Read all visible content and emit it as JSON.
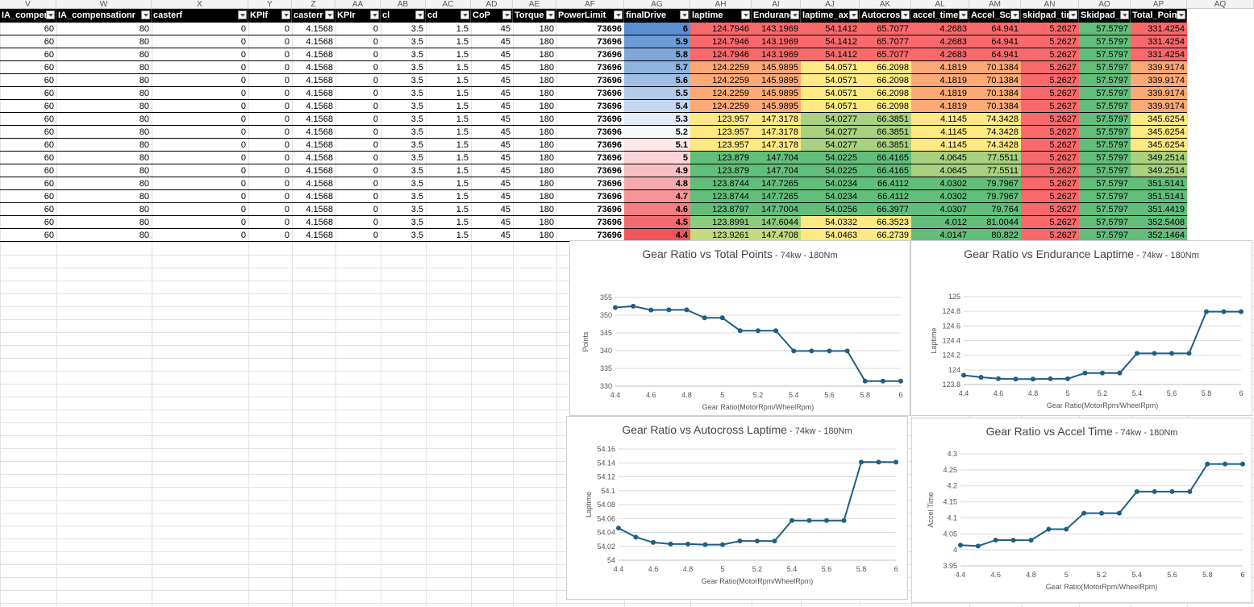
{
  "sheet": {
    "column_letters": [
      "V",
      "W",
      "X",
      "Y",
      "Z",
      "AA",
      "AB",
      "AC",
      "AD",
      "AE",
      "AF",
      "AG",
      "AH",
      "AI",
      "AJ",
      "AK",
      "AL",
      "AM",
      "AN",
      "AO",
      "AP",
      "AQ"
    ],
    "headers": [
      "IA_compen",
      "IA_compensationr",
      "casterf",
      "KPIf",
      "casterr",
      "KPIr",
      "cl",
      "cd",
      "CoP",
      "Torque",
      "PowerLimit",
      "finalDrive",
      "laptime",
      "Enduranc",
      "laptime_ax",
      "Autocros",
      "accel_time",
      "Accel_Sc",
      "skidpad_tim",
      "Skidpad_",
      "Total_Points"
    ],
    "rows": [
      [
        "60",
        "80",
        "0",
        "0",
        "4.1568",
        "0",
        "3.5",
        "1.5",
        "45",
        "180",
        "73696",
        "6",
        "124.7946",
        "143.1969",
        "54.1412",
        "65.7077",
        "4.2683",
        "64.941",
        "5.2627",
        "57.5797",
        "331.4254"
      ],
      [
        "60",
        "80",
        "0",
        "0",
        "4.1568",
        "0",
        "3.5",
        "1.5",
        "45",
        "180",
        "73696",
        "5.9",
        "124.7946",
        "143.1969",
        "54.1412",
        "65.7077",
        "4.2683",
        "64.941",
        "5.2627",
        "57.5797",
        "331.4254"
      ],
      [
        "60",
        "80",
        "0",
        "0",
        "4.1568",
        "0",
        "3.5",
        "1.5",
        "45",
        "180",
        "73696",
        "5.8",
        "124.7946",
        "143.1969",
        "54.1412",
        "65.7077",
        "4.2683",
        "64.941",
        "5.2627",
        "57.5797",
        "331.4254"
      ],
      [
        "60",
        "80",
        "0",
        "0",
        "4.1568",
        "0",
        "3.5",
        "1.5",
        "45",
        "180",
        "73696",
        "5.7",
        "124.2259",
        "145.9895",
        "54.0571",
        "66.2098",
        "4.1819",
        "70.1384",
        "5.2627",
        "57.5797",
        "339.9174"
      ],
      [
        "60",
        "80",
        "0",
        "0",
        "4.1568",
        "0",
        "3.5",
        "1.5",
        "45",
        "180",
        "73696",
        "5.6",
        "124.2259",
        "145.9895",
        "54.0571",
        "66.2098",
        "4.1819",
        "70.1384",
        "5.2627",
        "57.5797",
        "339.9174"
      ],
      [
        "60",
        "80",
        "0",
        "0",
        "4.1568",
        "0",
        "3.5",
        "1.5",
        "45",
        "180",
        "73696",
        "5.5",
        "124.2259",
        "145.9895",
        "54.0571",
        "66.2098",
        "4.1819",
        "70.1384",
        "5.2627",
        "57.5797",
        "339.9174"
      ],
      [
        "60",
        "80",
        "0",
        "0",
        "4.1568",
        "0",
        "3.5",
        "1.5",
        "45",
        "180",
        "73696",
        "5.4",
        "124.2259",
        "145.9895",
        "54.0571",
        "66.2098",
        "4.1819",
        "70.1384",
        "5.2627",
        "57.5797",
        "339.9174"
      ],
      [
        "60",
        "80",
        "0",
        "0",
        "4.1568",
        "0",
        "3.5",
        "1.5",
        "45",
        "180",
        "73696",
        "5.3",
        "123.957",
        "147.3178",
        "54.0277",
        "66.3851",
        "4.1145",
        "74.3428",
        "5.2627",
        "57.5797",
        "345.6254"
      ],
      [
        "60",
        "80",
        "0",
        "0",
        "4.1568",
        "0",
        "3.5",
        "1.5",
        "45",
        "180",
        "73696",
        "5.2",
        "123.957",
        "147.3178",
        "54.0277",
        "66.3851",
        "4.1145",
        "74.3428",
        "5.2627",
        "57.5797",
        "345.6254"
      ],
      [
        "60",
        "80",
        "0",
        "0",
        "4.1568",
        "0",
        "3.5",
        "1.5",
        "45",
        "180",
        "73696",
        "5.1",
        "123.957",
        "147.3178",
        "54.0277",
        "66.3851",
        "4.1145",
        "74.3428",
        "5.2627",
        "57.5797",
        "345.6254"
      ],
      [
        "60",
        "80",
        "0",
        "0",
        "4.1568",
        "0",
        "3.5",
        "1.5",
        "45",
        "180",
        "73696",
        "5",
        "123.879",
        "147.704",
        "54.0225",
        "66.4165",
        "4.0645",
        "77.5511",
        "5.2627",
        "57.5797",
        "349.2514"
      ],
      [
        "60",
        "80",
        "0",
        "0",
        "4.1568",
        "0",
        "3.5",
        "1.5",
        "45",
        "180",
        "73696",
        "4.9",
        "123.879",
        "147.704",
        "54.0225",
        "66.4165",
        "4.0645",
        "77.5511",
        "5.2627",
        "57.5797",
        "349.2514"
      ],
      [
        "60",
        "80",
        "0",
        "0",
        "4.1568",
        "0",
        "3.5",
        "1.5",
        "45",
        "180",
        "73696",
        "4.8",
        "123.8744",
        "147.7265",
        "54.0234",
        "66.4112",
        "4.0302",
        "79.7967",
        "5.2627",
        "57.5797",
        "351.5141"
      ],
      [
        "60",
        "80",
        "0",
        "0",
        "4.1568",
        "0",
        "3.5",
        "1.5",
        "45",
        "180",
        "73696",
        "4.7",
        "123.8744",
        "147.7265",
        "54.0234",
        "66.4112",
        "4.0302",
        "79.7967",
        "5.2627",
        "57.5797",
        "351.5141"
      ],
      [
        "60",
        "80",
        "0",
        "0",
        "4.1568",
        "0",
        "3.5",
        "1.5",
        "45",
        "180",
        "73696",
        "4.6",
        "123.8797",
        "147.7004",
        "54.0256",
        "66.3977",
        "4.0307",
        "79.764",
        "5.2627",
        "57.5797",
        "351.4419"
      ],
      [
        "60",
        "80",
        "0",
        "0",
        "4.1568",
        "0",
        "3.5",
        "1.5",
        "45",
        "180",
        "73696",
        "4.5",
        "123.8991",
        "147.6044",
        "54.0332",
        "66.3523",
        "4.012",
        "81.0044",
        "5.2627",
        "57.5797",
        "352.5408"
      ],
      [
        "60",
        "80",
        "0",
        "0",
        "4.1568",
        "0",
        "3.5",
        "1.5",
        "45",
        "180",
        "73696",
        "4.4",
        "123.9261",
        "147.4708",
        "54.0463",
        "66.2739",
        "4.0147",
        "80.822",
        "5.2627",
        "57.5797",
        "352.1464"
      ]
    ],
    "fills": {
      "finalDrive": [
        "#5b8ed0",
        "#6d9bd5",
        "#7ea7da",
        "#8fb3df",
        "#a1bfe4",
        "#b2cbe9",
        "#c4d7ee",
        "#e5ebf6",
        "#f7f9fc",
        "#fde8e9",
        "#fbd5d7",
        "#f9c0c3",
        "#f7aaae",
        "#f59599",
        "#f37f84",
        "#f26b71",
        "#f0555c"
      ],
      "laptime": [
        "#f8696b",
        "#f8696b",
        "#f8696b",
        "#fbaa77",
        "#fbaa77",
        "#fbaa77",
        "#fbaa77",
        "#fee983",
        "#fee983",
        "#fee983",
        "#63be7b",
        "#63be7b",
        "#63be7b",
        "#63be7b",
        "#63be7b",
        "#8ccc7e",
        "#c1dc81"
      ],
      "Enduranc": [
        "#f8696b",
        "#f8696b",
        "#f8696b",
        "#fbaa77",
        "#fbaa77",
        "#fbaa77",
        "#fbaa77",
        "#fee983",
        "#fee983",
        "#fee983",
        "#63be7b",
        "#63be7b",
        "#63be7b",
        "#63be7b",
        "#63be7b",
        "#8ccc7e",
        "#c1dc81"
      ],
      "laptime_ax": [
        "#f8696b",
        "#f8696b",
        "#f8696b",
        "#fee983",
        "#fee983",
        "#fee983",
        "#fee983",
        "#a8d27f",
        "#a8d27f",
        "#a8d27f",
        "#63be7b",
        "#63be7b",
        "#63be7b",
        "#63be7b",
        "#63be7b",
        "#fee983",
        "#fee983"
      ],
      "Autocros": [
        "#f8696b",
        "#f8696b",
        "#f8696b",
        "#fee983",
        "#fee983",
        "#fee983",
        "#fee983",
        "#a8d27f",
        "#a8d27f",
        "#a8d27f",
        "#63be7b",
        "#63be7b",
        "#63be7b",
        "#63be7b",
        "#63be7b",
        "#fee983",
        "#fee983"
      ],
      "accel_time": [
        "#f8696b",
        "#f8696b",
        "#f8696b",
        "#fbaa77",
        "#fbaa77",
        "#fbaa77",
        "#fbaa77",
        "#fee983",
        "#fee983",
        "#fee983",
        "#a8d27f",
        "#a8d27f",
        "#63be7b",
        "#63be7b",
        "#63be7b",
        "#63be7b",
        "#63be7b"
      ],
      "Accel_Sc": [
        "#f8696b",
        "#f8696b",
        "#f8696b",
        "#fbaa77",
        "#fbaa77",
        "#fbaa77",
        "#fbaa77",
        "#fee983",
        "#fee983",
        "#fee983",
        "#a8d27f",
        "#a8d27f",
        "#63be7b",
        "#63be7b",
        "#63be7b",
        "#63be7b",
        "#63be7b"
      ],
      "skidpad_tim": [
        "#f8696b",
        "#f8696b",
        "#f8696b",
        "#f8696b",
        "#f8696b",
        "#f8696b",
        "#f8696b",
        "#f8696b",
        "#f8696b",
        "#f8696b",
        "#f8696b",
        "#f8696b",
        "#f8696b",
        "#f8696b",
        "#f8696b",
        "#f8696b",
        "#f8696b"
      ],
      "Skidpad_": [
        "#63be7b",
        "#63be7b",
        "#63be7b",
        "#63be7b",
        "#63be7b",
        "#63be7b",
        "#63be7b",
        "#63be7b",
        "#63be7b",
        "#63be7b",
        "#63be7b",
        "#63be7b",
        "#63be7b",
        "#63be7b",
        "#63be7b",
        "#63be7b",
        "#63be7b"
      ],
      "Total_Points": [
        "#f8696b",
        "#f8696b",
        "#f8696b",
        "#fbaa77",
        "#fbaa77",
        "#fbaa77",
        "#fbaa77",
        "#fee983",
        "#fee983",
        "#fee983",
        "#a8d27f",
        "#a8d27f",
        "#63be7b",
        "#63be7b",
        "#63be7b",
        "#63be7b",
        "#63be7b"
      ]
    },
    "sort_indicator_column": "finalDrive",
    "bold_columns": [
      "PowerLimit",
      "finalDrive"
    ]
  },
  "colors": {
    "series": "#1f5f85",
    "header_bg": "#000000",
    "gridline": "#e2e2e2"
  },
  "chart_data": [
    {
      "type": "line",
      "title": "Gear Ratio vs Total Points",
      "subtitle": " - 74kw - 180Nm",
      "title_size": "large",
      "xlabel": "Gear Ratio(MotorRpm/WheelRpm)",
      "ylabel": "Points",
      "x": [
        4.4,
        4.5,
        4.6,
        4.7,
        4.8,
        4.9,
        5.0,
        5.1,
        5.2,
        5.3,
        5.4,
        5.5,
        5.6,
        5.7,
        5.8,
        5.9,
        6.0
      ],
      "y": [
        352.1464,
        352.5408,
        351.4419,
        351.5141,
        351.5141,
        349.2514,
        349.2514,
        345.6254,
        345.6254,
        345.6254,
        339.9174,
        339.9174,
        339.9174,
        339.9174,
        331.4254,
        331.4254,
        331.4254
      ],
      "xlim": [
        4.4,
        6
      ],
      "ylim": [
        330,
        355
      ],
      "xticks": [
        "4.4",
        "4.6",
        "4.8",
        "5",
        "5.2",
        "5.4",
        "5.6",
        "5.8",
        "6"
      ],
      "yticks": [
        "330",
        "335",
        "340",
        "345",
        "350",
        "355"
      ],
      "grid": true
    },
    {
      "type": "line",
      "title": "Gear Ratio vs Endurance Laptime",
      "subtitle": " - 74kw - 180Nm",
      "title_size": "large",
      "xlabel": "Gear Ratio(MotorRpm/WheelRpm)",
      "ylabel": "Laptime",
      "x": [
        4.4,
        4.5,
        4.6,
        4.7,
        4.8,
        4.9,
        5.0,
        5.1,
        5.2,
        5.3,
        5.4,
        5.5,
        5.6,
        5.7,
        5.8,
        5.9,
        6.0
      ],
      "y": [
        123.9261,
        123.8991,
        123.8797,
        123.8744,
        123.8744,
        123.879,
        123.879,
        123.957,
        123.957,
        123.957,
        124.2259,
        124.2259,
        124.2259,
        124.2259,
        124.7946,
        124.7946,
        124.7946
      ],
      "xlim": [
        4.4,
        6
      ],
      "ylim": [
        123.8,
        125
      ],
      "xticks": [
        "4.4",
        "4.6",
        "4.8",
        "5",
        "5.2",
        "5.4",
        "5.6",
        "5.8",
        "6"
      ],
      "yticks": [
        "123.8",
        "124",
        "124.2",
        "124.4",
        "124.6",
        "124.8",
        "125"
      ],
      "grid": true
    },
    {
      "type": "line",
      "title": "Gear Ratio vs Autocross Laptime",
      "subtitle": " - 74kw - 180Nm",
      "title_size": "large",
      "xlabel": "Gear Ratio(MotorRpm/WheelRpm)",
      "ylabel": "Laptime",
      "x": [
        4.4,
        4.5,
        4.6,
        4.7,
        4.8,
        4.9,
        5.0,
        5.1,
        5.2,
        5.3,
        5.4,
        5.5,
        5.6,
        5.7,
        5.8,
        5.9,
        6.0
      ],
      "y": [
        54.0463,
        54.0332,
        54.0256,
        54.0234,
        54.0234,
        54.0225,
        54.0225,
        54.0277,
        54.0277,
        54.0277,
        54.0571,
        54.0571,
        54.0571,
        54.0571,
        54.1412,
        54.1412,
        54.1412
      ],
      "xlim": [
        4.4,
        6
      ],
      "ylim": [
        54,
        54.16
      ],
      "xticks": [
        "4.4",
        "4.6",
        "4.8",
        "5",
        "5.2",
        "5.4",
        "5.6",
        "5.8",
        "6"
      ],
      "yticks": [
        "54",
        "54.02",
        "54.04",
        "54.06",
        "54.08",
        "54.1",
        "54.12",
        "54.14",
        "54.16"
      ],
      "grid": true
    },
    {
      "type": "line",
      "title": "Gear Ratio vs Accel Time",
      "subtitle": " - 74kw - 180Nm",
      "title_size": "large",
      "xlabel": "Gear Ratio(MotorRpm/WheelRpm)",
      "ylabel": "Accel Time",
      "x": [
        4.4,
        4.5,
        4.6,
        4.7,
        4.8,
        4.9,
        5.0,
        5.1,
        5.2,
        5.3,
        5.4,
        5.5,
        5.6,
        5.7,
        5.8,
        5.9,
        6.0
      ],
      "y": [
        4.0147,
        4.012,
        4.0307,
        4.0302,
        4.0302,
        4.0645,
        4.0645,
        4.1145,
        4.1145,
        4.1145,
        4.1819,
        4.1819,
        4.1819,
        4.1819,
        4.2683,
        4.2683,
        4.2683
      ],
      "xlim": [
        4.4,
        6
      ],
      "ylim": [
        3.95,
        4.3
      ],
      "xticks": [
        "4.4",
        "4.6",
        "4.8",
        "5",
        "5.2",
        "5.4",
        "5.6",
        "5.8",
        "6"
      ],
      "yticks": [
        "3.95",
        "4",
        "4.05",
        "4.1",
        "4.15",
        "4.2",
        "4.25",
        "4.3"
      ],
      "grid": true
    }
  ]
}
